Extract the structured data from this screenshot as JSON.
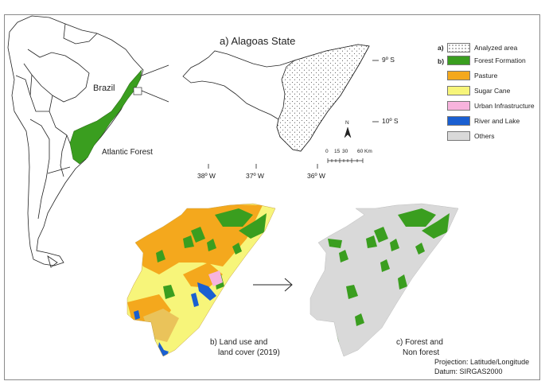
{
  "inset": {
    "title": "a) Alagoas State",
    "lat_labels": [
      "9º S",
      "10º S"
    ],
    "lon_labels": [
      "38º W",
      "37º W",
      "36º W"
    ],
    "north_label": "N",
    "scale_labels": [
      "0",
      "15",
      "30",
      "60 Km"
    ]
  },
  "overview": {
    "country_label": "Brazil",
    "region_label": "Atlantic Forest"
  },
  "legend": {
    "a_tag": "a)",
    "b_tag": "b)",
    "analyzed": {
      "label": "Analyzed area"
    },
    "classes": [
      {
        "label": "Forest Formation",
        "color": "#3a9e1f"
      },
      {
        "label": "Pasture",
        "color": "#f4a81d"
      },
      {
        "label": "Sugar Cane",
        "color": "#f7f57a"
      },
      {
        "label": "Urban Infrastructure",
        "color": "#f7b3dd"
      },
      {
        "label": "River and Lake",
        "color": "#1a5fd1"
      },
      {
        "label": "Others",
        "color": "#d9d9d9"
      }
    ]
  },
  "panels": {
    "b_caption_line1": "b) Land use and",
    "b_caption_line2": "land cover (2019)",
    "c_caption_line1": "c) Forest and",
    "c_caption_line2": "Non forest"
  },
  "footer": {
    "projection": "Projection: Latitude/Longitude",
    "datum": "Datum: SIRGAS2000"
  }
}
